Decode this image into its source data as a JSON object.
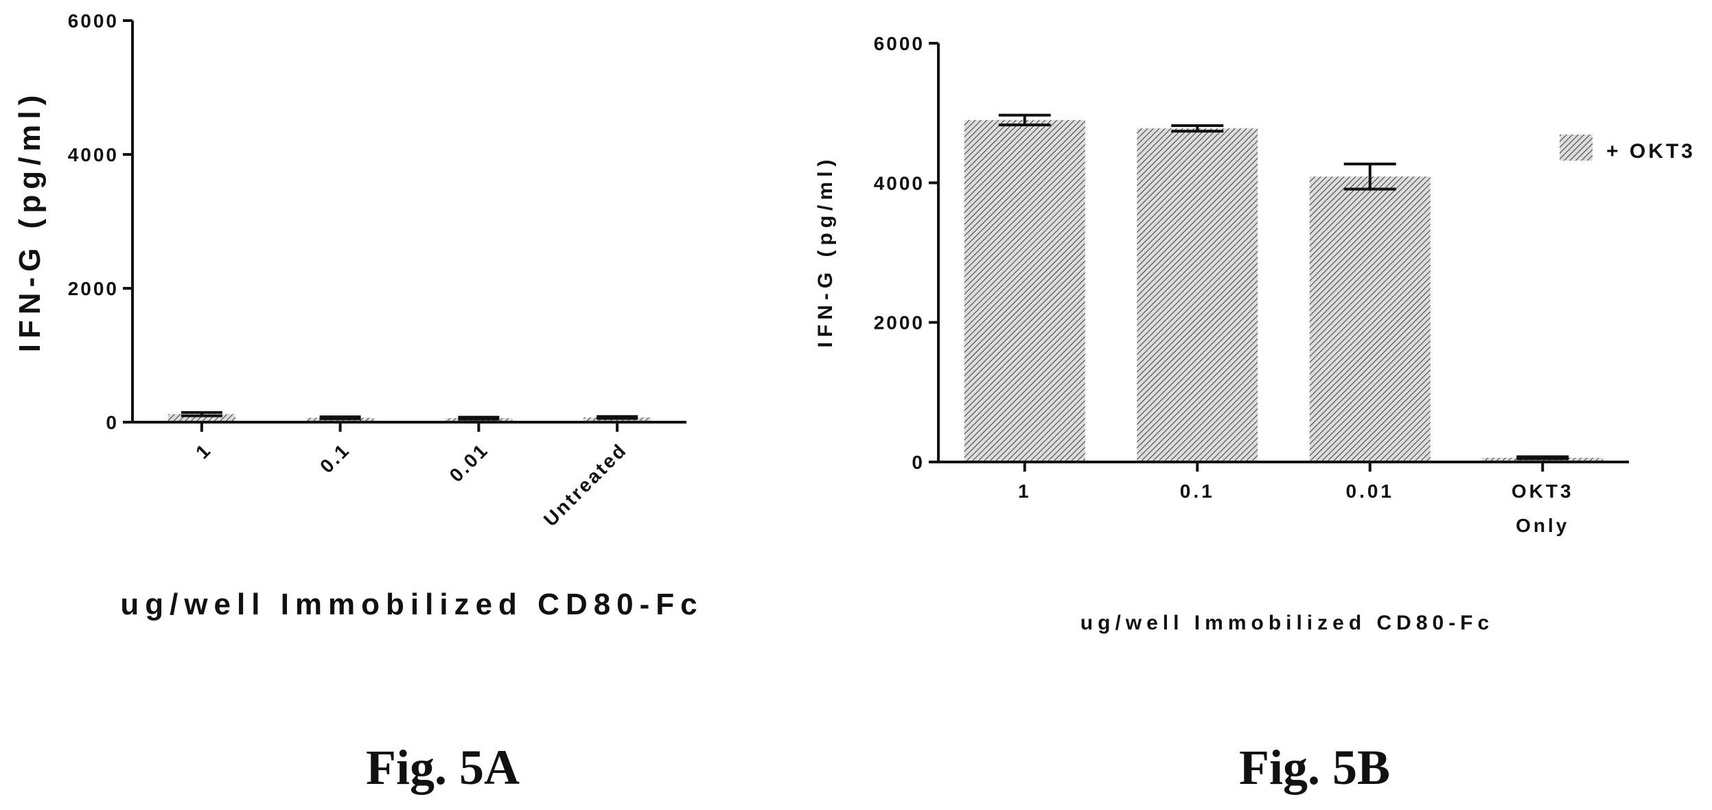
{
  "chart_data": [
    {
      "type": "bar",
      "figure_label": "Fig. 5A",
      "categories": [
        "1",
        "0.1",
        "0.01",
        "Untreated"
      ],
      "values": [
        120,
        65,
        60,
        70
      ],
      "errors": [
        25,
        15,
        15,
        15
      ],
      "ylim": [
        0,
        6000
      ],
      "yticks": [
        "0",
        "2000",
        "4000",
        "6000"
      ],
      "xlabel": "ug/well Immobilized CD80-Fc",
      "ylabel": "IFN-G (pg/ml)",
      "grid": false
    },
    {
      "type": "bar",
      "figure_label": "Fig. 5B",
      "categories": [
        "1",
        "0.1",
        "0.01",
        "OKT3 Only"
      ],
      "values": [
        4900,
        4780,
        4090,
        60
      ],
      "errors": [
        70,
        40,
        180,
        15
      ],
      "ylim": [
        0,
        6000
      ],
      "yticks": [
        "0",
        "2000",
        "4000",
        "6000"
      ],
      "xlabel": "ug/well Immobilized CD80-Fc",
      "ylabel": "IFN-G (pg/ml)",
      "legend": [
        "+ OKT3"
      ],
      "legend_position": "top-right",
      "grid": false
    }
  ]
}
